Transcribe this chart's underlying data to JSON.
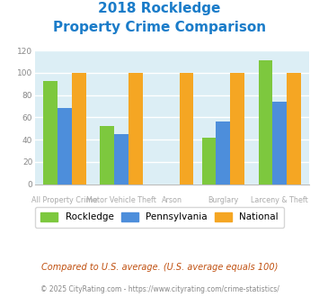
{
  "title_line1": "2018 Rockledge",
  "title_line2": "Property Crime Comparison",
  "rockledge": [
    93,
    52,
    0,
    42,
    111
  ],
  "pennsylvania": [
    68,
    45,
    0,
    56,
    74
  ],
  "national": [
    100,
    100,
    100,
    100,
    100
  ],
  "bar_colors": {
    "rockledge": "#7dc83e",
    "pennsylvania": "#4d8edb",
    "national": "#f5a623"
  },
  "ylim": [
    0,
    120
  ],
  "yticks": [
    0,
    20,
    40,
    60,
    80,
    100,
    120
  ],
  "bg_color": "#dceef5",
  "title_color": "#1a7cc9",
  "top_x_labels": [
    "",
    "Motor Vehicle Theft",
    "",
    "Burglary",
    ""
  ],
  "bot_x_labels": [
    "All Property Crime",
    "",
    "Arson",
    "",
    "Larceny & Theft"
  ],
  "legend_labels": [
    "Rockledge",
    "Pennsylvania",
    "National"
  ],
  "footer_text": "Compared to U.S. average. (U.S. average equals 100)",
  "copyright_text": "© 2025 CityRating.com - https://www.cityrating.com/crime-statistics/",
  "footer_color": "#c05010",
  "copyright_color": "#888888",
  "label_color": "#aaaaaa"
}
